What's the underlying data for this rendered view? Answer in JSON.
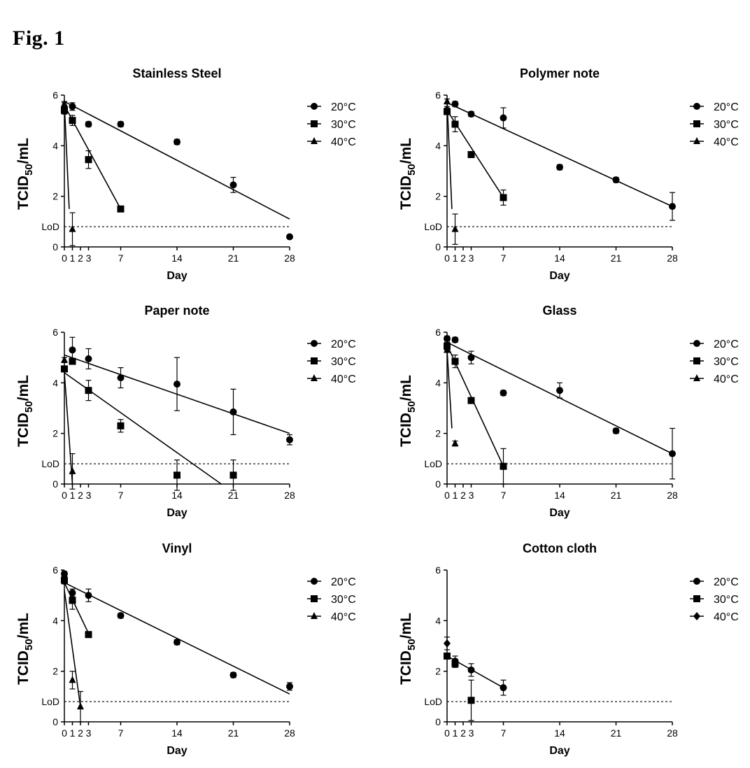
{
  "figure": {
    "title": "Fig. 1"
  },
  "chart_data": [
    {
      "type": "scatter",
      "title": "Stainless Steel",
      "xlabel": "Day",
      "ylabel": "TCID50/mL",
      "xticks": [
        0,
        1,
        2,
        3,
        7,
        14,
        21,
        28
      ],
      "yticks": [
        0,
        2,
        4,
        6
      ],
      "xlim": [
        0,
        28
      ],
      "ylim": [
        0,
        6
      ],
      "lod": {
        "label": "LoD",
        "value": 0.8
      },
      "legend_position": "right",
      "series": [
        {
          "name": "20°C",
          "marker": "circle",
          "points": [
            [
              0,
              5.5,
              0.2
            ],
            [
              1,
              5.55,
              0.15
            ],
            [
              3,
              4.85,
              0.1
            ],
            [
              7,
              4.85,
              0.1
            ],
            [
              14,
              4.15,
              0.1
            ],
            [
              21,
              2.45,
              0.3
            ],
            [
              28,
              0.4,
              0
            ]
          ],
          "fit": [
            [
              0,
              5.75
            ],
            [
              28,
              1.1
            ]
          ]
        },
        {
          "name": "30°C",
          "marker": "square",
          "points": [
            [
              0,
              5.4,
              0.15
            ],
            [
              1,
              5.0,
              0.2
            ],
            [
              3,
              3.45,
              0.35
            ],
            [
              7,
              1.5,
              0.1
            ]
          ],
          "fit": [
            [
              0,
              5.6
            ],
            [
              7,
              1.5
            ]
          ]
        },
        {
          "name": "40°C",
          "marker": "triangle",
          "points": [
            [
              0,
              5.65,
              0.1
            ],
            [
              1,
              0.7,
              0.65
            ]
          ],
          "fit": [
            [
              0,
              5.7
            ],
            [
              0.6,
              1.5
            ]
          ]
        }
      ]
    },
    {
      "type": "scatter",
      "title": "Polymer note",
      "xlabel": "Day",
      "ylabel": "TCID50/mL",
      "xticks": [
        0,
        1,
        2,
        3,
        7,
        14,
        21,
        28
      ],
      "yticks": [
        0,
        2,
        4,
        6
      ],
      "xlim": [
        0,
        28
      ],
      "ylim": [
        0,
        6
      ],
      "lod": {
        "label": "LoD",
        "value": 0.8
      },
      "legend_position": "right",
      "series": [
        {
          "name": "20°C",
          "marker": "circle",
          "points": [
            [
              0,
              5.4,
              0.15
            ],
            [
              1,
              5.65,
              0.1
            ],
            [
              3,
              5.25,
              0.1
            ],
            [
              7,
              5.1,
              0.4
            ],
            [
              14,
              3.15,
              0.1
            ],
            [
              21,
              2.65,
              0.1
            ],
            [
              28,
              1.6,
              0.55
            ]
          ],
          "fit": [
            [
              0,
              5.7
            ],
            [
              28,
              1.6
            ]
          ]
        },
        {
          "name": "30°C",
          "marker": "square",
          "points": [
            [
              0,
              5.35,
              0.1
            ],
            [
              1,
              4.85,
              0.3
            ],
            [
              3,
              3.65,
              0.1
            ],
            [
              7,
              1.95,
              0.3
            ]
          ],
          "fit": [
            [
              0,
              5.4
            ],
            [
              7,
              1.95
            ]
          ]
        },
        {
          "name": "40°C",
          "marker": "triangle",
          "points": [
            [
              0,
              5.75,
              0.1
            ],
            [
              1,
              0.7,
              0.6
            ]
          ],
          "fit": [
            [
              0,
              5.75
            ],
            [
              0.6,
              1.5
            ]
          ]
        }
      ]
    },
    {
      "type": "scatter",
      "title": "Paper note",
      "xlabel": "Day",
      "ylabel": "TCID50/mL",
      "xticks": [
        0,
        1,
        2,
        3,
        7,
        14,
        21,
        28
      ],
      "yticks": [
        0,
        2,
        4,
        6
      ],
      "xlim": [
        0,
        28
      ],
      "ylim": [
        0,
        6
      ],
      "lod": {
        "label": "LoD",
        "value": 0.8
      },
      "legend_position": "right",
      "series": [
        {
          "name": "20°C",
          "marker": "circle",
          "points": [
            [
              1,
              5.3,
              0.5
            ],
            [
              3,
              4.95,
              0.4
            ],
            [
              7,
              4.2,
              0.4
            ],
            [
              14,
              3.95,
              1.05
            ],
            [
              21,
              2.85,
              0.9
            ],
            [
              28,
              1.75,
              0.2
            ]
          ],
          "fit": [
            [
              0,
              5.1
            ],
            [
              28,
              2.0
            ]
          ]
        },
        {
          "name": "30°C",
          "marker": "square",
          "points": [
            [
              0,
              4.55,
              0.05
            ],
            [
              1,
              4.85,
              0.1
            ],
            [
              3,
              3.7,
              0.4
            ],
            [
              7,
              2.3,
              0.25
            ],
            [
              14,
              0.35,
              0.6
            ],
            [
              21,
              0.35,
              0.6
            ]
          ],
          "fit": [
            [
              0,
              4.4
            ],
            [
              19.5,
              0
            ]
          ]
        },
        {
          "name": "40°C",
          "marker": "triangle",
          "points": [
            [
              0,
              4.9,
              0.1
            ],
            [
              1,
              0.5,
              0.7
            ]
          ],
          "fit": [
            [
              0,
              4.4
            ],
            [
              1,
              0
            ]
          ]
        }
      ]
    },
    {
      "type": "scatter",
      "title": "Glass",
      "xlabel": "Day",
      "ylabel": "TCID50/mL",
      "xticks": [
        0,
        1,
        2,
        3,
        7,
        14,
        21,
        28
      ],
      "yticks": [
        0,
        2,
        4,
        6
      ],
      "xlim": [
        0,
        28
      ],
      "ylim": [
        0,
        6
      ],
      "lod": {
        "label": "LoD",
        "value": 0.8
      },
      "legend_position": "right",
      "series": [
        {
          "name": "20°C",
          "marker": "circle",
          "points": [
            [
              0,
              5.75,
              0.1
            ],
            [
              1,
              5.7,
              0.1
            ],
            [
              3,
              5.0,
              0.25
            ],
            [
              7,
              3.6,
              0.1
            ],
            [
              14,
              3.7,
              0.3
            ],
            [
              21,
              2.1,
              0.1
            ],
            [
              28,
              1.2,
              1.0
            ]
          ],
          "fit": [
            [
              0,
              5.6
            ],
            [
              28,
              1.2
            ]
          ]
        },
        {
          "name": "30°C",
          "marker": "square",
          "points": [
            [
              0,
              5.45,
              0.15
            ],
            [
              1,
              4.85,
              0.25
            ],
            [
              3,
              3.3,
              0.05
            ],
            [
              7,
              0.7,
              0.7
            ]
          ],
          "fit": [
            [
              0,
              5.5
            ],
            [
              7,
              0.7
            ]
          ]
        },
        {
          "name": "40°C",
          "marker": "triangle",
          "points": [
            [
              0,
              5.3,
              0.1
            ],
            [
              1,
              1.6,
              0.1
            ]
          ],
          "fit": [
            [
              0,
              5.3
            ],
            [
              0.6,
              2.2
            ]
          ]
        }
      ]
    },
    {
      "type": "scatter",
      "title": "Vinyl",
      "xlabel": "Day",
      "ylabel": "TCID50/mL",
      "xticks": [
        0,
        1,
        2,
        3,
        7,
        14,
        21,
        28
      ],
      "yticks": [
        0,
        2,
        4,
        6
      ],
      "xlim": [
        0,
        28
      ],
      "ylim": [
        0,
        6
      ],
      "lod": {
        "label": "LoD",
        "value": 0.8
      },
      "legend_position": "right",
      "series": [
        {
          "name": "20°C",
          "marker": "circle",
          "points": [
            [
              0,
              5.85,
              0.1
            ],
            [
              1,
              5.1,
              0.15
            ],
            [
              3,
              5.0,
              0.25
            ],
            [
              7,
              4.2,
              0.1
            ],
            [
              14,
              3.15,
              0.1
            ],
            [
              21,
              1.85,
              0.1
            ],
            [
              28,
              1.4,
              0.15
            ]
          ],
          "fit": [
            [
              0,
              5.5
            ],
            [
              28,
              1.1
            ]
          ]
        },
        {
          "name": "30°C",
          "marker": "square",
          "points": [
            [
              0,
              5.6,
              0.15
            ],
            [
              1,
              4.8,
              0.35
            ],
            [
              3,
              3.45,
              0.1
            ]
          ],
          "fit": [
            [
              0,
              5.5
            ],
            [
              3,
              3.5
            ]
          ]
        },
        {
          "name": "40°C",
          "marker": "triangle",
          "points": [
            [
              1,
              1.65,
              0.35
            ],
            [
              2,
              0.6,
              0.6
            ]
          ],
          "fit": [
            [
              0,
              5.2
            ],
            [
              2,
              0.6
            ]
          ]
        }
      ]
    },
    {
      "type": "scatter",
      "title": "Cotton cloth",
      "xlabel": "Day",
      "ylabel": "TCID50/mL",
      "xticks": [
        0,
        1,
        2,
        3,
        7,
        14,
        21,
        28
      ],
      "yticks": [
        0,
        2,
        4,
        6
      ],
      "xlim": [
        0,
        28
      ],
      "ylim": [
        0,
        6
      ],
      "lod": {
        "label": "LoD",
        "value": 0.8
      },
      "legend_position": "right",
      "series": [
        {
          "name": "20°C",
          "marker": "circle",
          "points": [
            [
              1,
              2.4,
              0.2
            ],
            [
              3,
              2.05,
              0.25
            ],
            [
              7,
              1.35,
              0.3
            ]
          ],
          "fit": [
            [
              0,
              2.6
            ],
            [
              7,
              1.35
            ]
          ]
        },
        {
          "name": "30°C",
          "marker": "square",
          "points": [
            [
              0,
              2.6,
              0.05
            ],
            [
              1,
              2.3,
              0.15
            ],
            [
              3,
              0.85,
              0.8
            ]
          ],
          "fit": []
        },
        {
          "name": "40°C",
          "marker": "diamond",
          "points": [
            [
              0,
              3.1,
              0.25
            ]
          ],
          "fit": []
        }
      ]
    }
  ]
}
